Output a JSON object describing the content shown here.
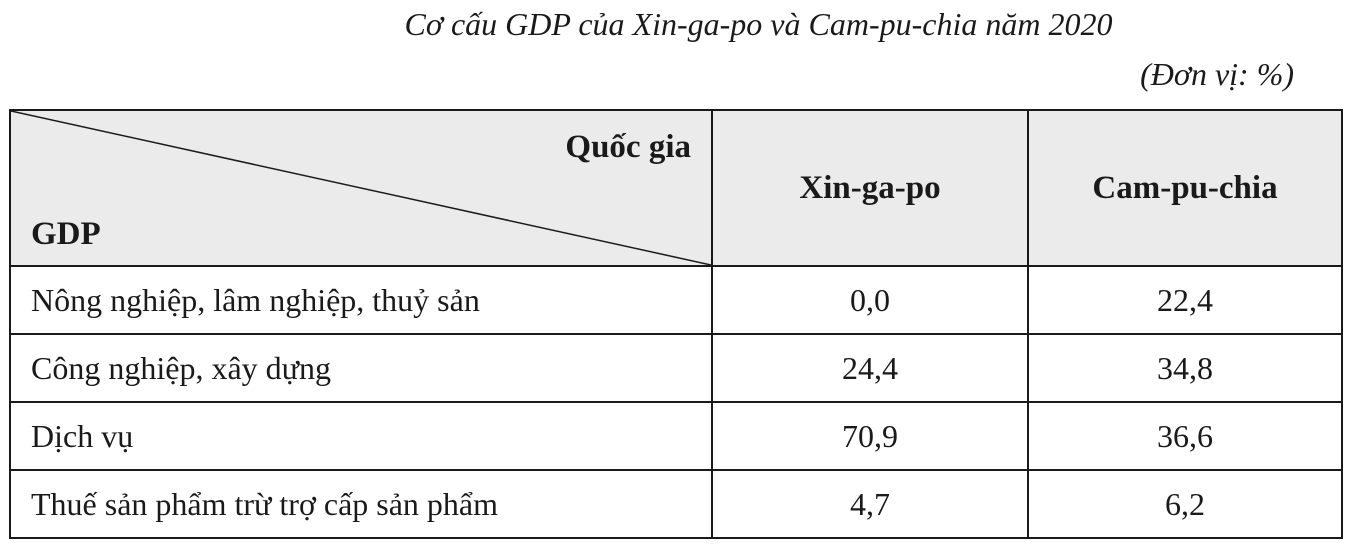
{
  "title": "Cơ cấu GDP của Xin-ga-po và Cam-pu-chia năm 2020",
  "unit": "(Đơn vị: %)",
  "header": {
    "corner_top": "Quốc gia",
    "corner_bottom": "GDP",
    "col1": "Xin-ga-po",
    "col2": "Cam-pu-chia"
  },
  "rows": [
    {
      "label": "Nông nghiệp, lâm nghiệp, thuỷ sản",
      "v1": "0,0",
      "v2": "22,4"
    },
    {
      "label": "Công nghiệp, xây dựng",
      "v1": "24,4",
      "v2": "34,8"
    },
    {
      "label": "Dịch vụ",
      "v1": "70,9",
      "v2": "36,6"
    },
    {
      "label": "Thuế sản phẩm trừ trợ cấp sản phẩm",
      "v1": "4,7",
      "v2": "6,2"
    }
  ],
  "chart_data": {
    "type": "table",
    "title": "Cơ cấu GDP của Xin-ga-po và Cam-pu-chia năm 2020",
    "unit": "(Đơn vị: %)",
    "columns": [
      "Xin-ga-po",
      "Cam-pu-chia"
    ],
    "categories": [
      "Nông nghiệp, lâm nghiệp, thuỷ sản",
      "Công nghiệp, xây dựng",
      "Dịch vụ",
      "Thuế sản phẩm trừ trợ cấp sản phẩm"
    ],
    "series": [
      {
        "name": "Xin-ga-po",
        "values": [
          0.0,
          24.4,
          70.9,
          4.7
        ]
      },
      {
        "name": "Cam-pu-chia",
        "values": [
          22.4,
          34.8,
          36.6,
          6.2
        ]
      }
    ]
  }
}
